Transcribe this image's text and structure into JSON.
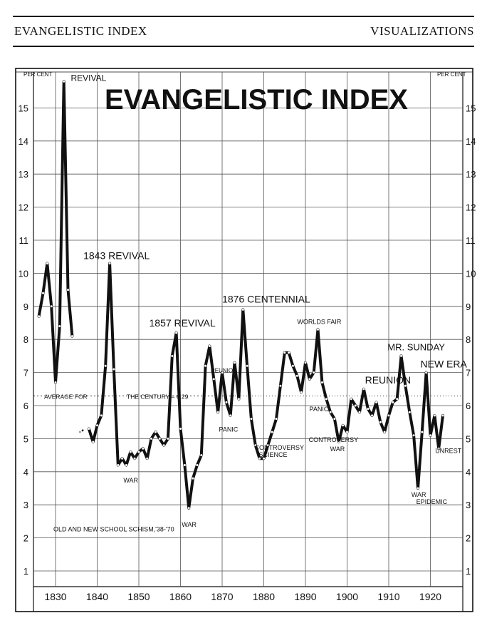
{
  "header": {
    "left": "EVANGELISTIC INDEX",
    "right": "VISUALIZATIONS"
  },
  "chart_data": {
    "type": "line",
    "title": "EVANGELISTIC INDEX",
    "ylabel_left": "PER CENT",
    "ylabel_right": "PER CENT",
    "xlim": [
      1825,
      1925
    ],
    "ylim": [
      0,
      15.5
    ],
    "x_ticks": [
      1830,
      1840,
      1850,
      1860,
      1870,
      1880,
      1890,
      1900,
      1910,
      1920
    ],
    "y_ticks": [
      1,
      2,
      3,
      4,
      5,
      6,
      7,
      8,
      9,
      10,
      11,
      12,
      13,
      14,
      15
    ],
    "grid": true,
    "average": {
      "value": 6.29,
      "label_left": "AVERAGE FOR",
      "label_right": "THE CENTURY = 6.29"
    },
    "series": [
      {
        "x": [
          1826,
          1827,
          1828,
          1829,
          1830,
          1831,
          1832,
          1833,
          1834
        ],
        "y": [
          8.7,
          9.4,
          10.3,
          9.0,
          6.7,
          8.4,
          15.8,
          9.5,
          8.1
        ]
      },
      {
        "x": [
          1838,
          1839,
          1840,
          1841,
          1842,
          1843,
          1844,
          1845,
          1846,
          1847,
          1848,
          1849,
          1850,
          1851,
          1852,
          1853,
          1854,
          1855,
          1856,
          1857,
          1858,
          1859,
          1860,
          1861,
          1862,
          1863,
          1864,
          1865,
          1866,
          1867,
          1868,
          1869,
          1870,
          1871,
          1872,
          1873,
          1874,
          1875,
          1876,
          1877,
          1878,
          1879,
          1880,
          1881,
          1882,
          1883,
          1884,
          1885,
          1886,
          1887,
          1888,
          1889,
          1890,
          1891,
          1892,
          1893,
          1894,
          1895,
          1896,
          1897,
          1898,
          1899,
          1900,
          1901,
          1902,
          1903,
          1904,
          1905,
          1906,
          1907,
          1908,
          1909,
          1910,
          1911,
          1912,
          1913,
          1914,
          1915,
          1916,
          1917,
          1918,
          1919,
          1920,
          1921,
          1922,
          1923
        ],
        "y": [
          5.3,
          4.9,
          5.4,
          5.7,
          7.2,
          10.3,
          7.1,
          4.2,
          4.4,
          4.2,
          4.6,
          4.4,
          4.6,
          4.7,
          4.4,
          5.0,
          5.2,
          5.0,
          4.8,
          5.0,
          7.5,
          8.2,
          5.3,
          4.2,
          2.9,
          3.8,
          4.2,
          4.5,
          7.2,
          7.8,
          6.8,
          5.8,
          7.0,
          6.1,
          5.7,
          7.3,
          6.2,
          8.9,
          7.2,
          5.6,
          4.8,
          4.4,
          4.4,
          4.8,
          5.2,
          5.6,
          6.6,
          7.6,
          7.6,
          7.2,
          6.9,
          6.4,
          7.3,
          6.8,
          7.0,
          8.3,
          6.7,
          6.2,
          5.8,
          5.6,
          4.9,
          5.4,
          5.2,
          6.2,
          6.0,
          5.8,
          6.5,
          5.9,
          5.7,
          6.1,
          5.5,
          5.2,
          5.7,
          6.1,
          6.2,
          7.5,
          6.6,
          5.8,
          5.1,
          3.5,
          5.2,
          7.0,
          5.1,
          5.7,
          4.7,
          5.7
        ]
      },
      {
        "x": [
          1835.5,
          1836.2,
          1836.8
        ],
        "y": [
          5.2,
          5.2,
          5.3
        ]
      }
    ],
    "annotations": [
      {
        "text": "REVIVAL",
        "x": 1833,
        "y": 15.8
      },
      {
        "text": "1843 REVIVAL",
        "x": 1843,
        "y": 10.3
      },
      {
        "text": "WAR",
        "x": 1847,
        "y": 4.0
      },
      {
        "text": "1857 REVIVAL",
        "x": 1860,
        "y": 8.2
      },
      {
        "text": "WAR",
        "x": 1862,
        "y": 2.9
      },
      {
        "text": "REUNION",
        "x": 1870,
        "y": 7.0
      },
      {
        "text": "PANIC",
        "x": 1873,
        "y": 5.6
      },
      {
        "text": "1876 CENTENNIAL",
        "x": 1876,
        "y": 8.9
      },
      {
        "text": "CONTROVERSY",
        "x": 1880,
        "y": 4.4
      },
      {
        "text": "SCIENCE",
        "x": 1880,
        "y": 4.4
      },
      {
        "text": "WORLDS FAIR",
        "x": 1894,
        "y": 8.3
      },
      {
        "text": "PANIC",
        "x": 1893,
        "y": 6.0
      },
      {
        "text": "CONTROVERSY",
        "x": 1899,
        "y": 4.9
      },
      {
        "text": "WAR",
        "x": 1899,
        "y": 4.9
      },
      {
        "text": "REUNION",
        "x": 1906,
        "y": 6.5
      },
      {
        "text": "MR. SUNDAY",
        "x": 1915,
        "y": 7.5
      },
      {
        "text": "NEW ERA",
        "x": 1920,
        "y": 7.0
      },
      {
        "text": "UNREST",
        "x": 1922,
        "y": 4.7
      },
      {
        "text": "WAR",
        "x": 1918,
        "y": 3.5
      },
      {
        "text": "EPIDEMIC",
        "x": 1919,
        "y": 3.5
      },
      {
        "text": "OLD AND NEW SCHOOL SCHISM,'38-'70",
        "x": 1850,
        "y": 2.2
      }
    ]
  }
}
